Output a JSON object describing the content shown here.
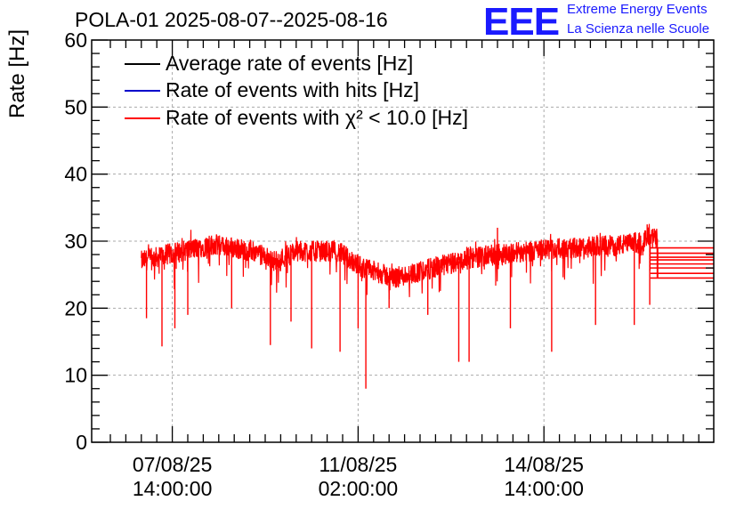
{
  "header": {
    "title": "POLA-01 2025-08-07--2025-08-16",
    "logo_text": "EEE",
    "logo_line1": "Extreme Energy Events",
    "logo_line2": "La Scienza nelle Scuole",
    "logo_color": "#1a1aff"
  },
  "chart_data": {
    "type": "line",
    "title": "POLA-01 2025-08-07--2025-08-16",
    "xlabel": "",
    "ylabel": "Rate [Hz]",
    "ylim": [
      0,
      60
    ],
    "yticks": [
      0,
      10,
      20,
      30,
      40,
      50,
      60
    ],
    "xlim_hours": [
      0,
      230
    ],
    "xticks": [
      {
        "hour": 24,
        "line1": "07/08/25",
        "line2": "14:00:00"
      },
      {
        "hour": 96,
        "line1": "11/08/25",
        "line2": "02:00:00"
      },
      {
        "hour": 168,
        "line1": "14/08/25",
        "line2": "14:00:00"
      }
    ],
    "grid": true,
    "legend_position": "top-left",
    "series": [
      {
        "name": "Average rate of events [Hz]",
        "color": "#000000",
        "visible_under_red": true
      },
      {
        "name": "Rate of events with hits [Hz]",
        "color": "#0000cc",
        "visible_under_red": true
      },
      {
        "name": "Rate of events with χ² < 10.0 [Hz]",
        "color": "#ff0000",
        "trend": [
          {
            "hour": 12,
            "value": 27.0
          },
          {
            "hour": 22,
            "value": 28.0
          },
          {
            "hour": 40,
            "value": 29.5
          },
          {
            "hour": 55,
            "value": 28.5
          },
          {
            "hour": 64,
            "value": 27.0
          },
          {
            "hour": 72,
            "value": 28.5
          },
          {
            "hour": 88,
            "value": 28.5
          },
          {
            "hour": 98,
            "value": 26.0
          },
          {
            "hour": 110,
            "value": 24.5
          },
          {
            "hour": 125,
            "value": 26.0
          },
          {
            "hour": 140,
            "value": 27.5
          },
          {
            "hour": 160,
            "value": 28.5
          },
          {
            "hour": 180,
            "value": 29.0
          },
          {
            "hour": 200,
            "value": 29.5
          },
          {
            "hour": 212,
            "value": 30.5
          }
        ],
        "dips": [
          {
            "hour": 14,
            "value": 18.5
          },
          {
            "hour": 20,
            "value": 14.3
          },
          {
            "hour": 25,
            "value": 17.0
          },
          {
            "hour": 30,
            "value": 19.0
          },
          {
            "hour": 47,
            "value": 20.0
          },
          {
            "hour": 62,
            "value": 14.5
          },
          {
            "hour": 70,
            "value": 18.0
          },
          {
            "hour": 78,
            "value": 14.0
          },
          {
            "hour": 89,
            "value": 13.5
          },
          {
            "hour": 96,
            "value": 17.0
          },
          {
            "hour": 99,
            "value": 8.0
          },
          {
            "hour": 108,
            "value": 20.0
          },
          {
            "hour": 123,
            "value": 19.0
          },
          {
            "hour": 135,
            "value": 12.0
          },
          {
            "hour": 139,
            "value": 12.0
          },
          {
            "hour": 155,
            "value": 17.0
          },
          {
            "hour": 171,
            "value": 13.5
          },
          {
            "hour": 188,
            "value": 17.5
          },
          {
            "hour": 203,
            "value": 17.5
          },
          {
            "hour": 209,
            "value": 20.5
          }
        ],
        "peaks": [
          {
            "hour": 150,
            "value": 32.0
          },
          {
            "hour": 208,
            "value": 32.5
          }
        ],
        "tail_lines": [
          24.5,
          25.2,
          26.0,
          26.6,
          27.2,
          27.6,
          28.2,
          29.0
        ]
      }
    ]
  }
}
